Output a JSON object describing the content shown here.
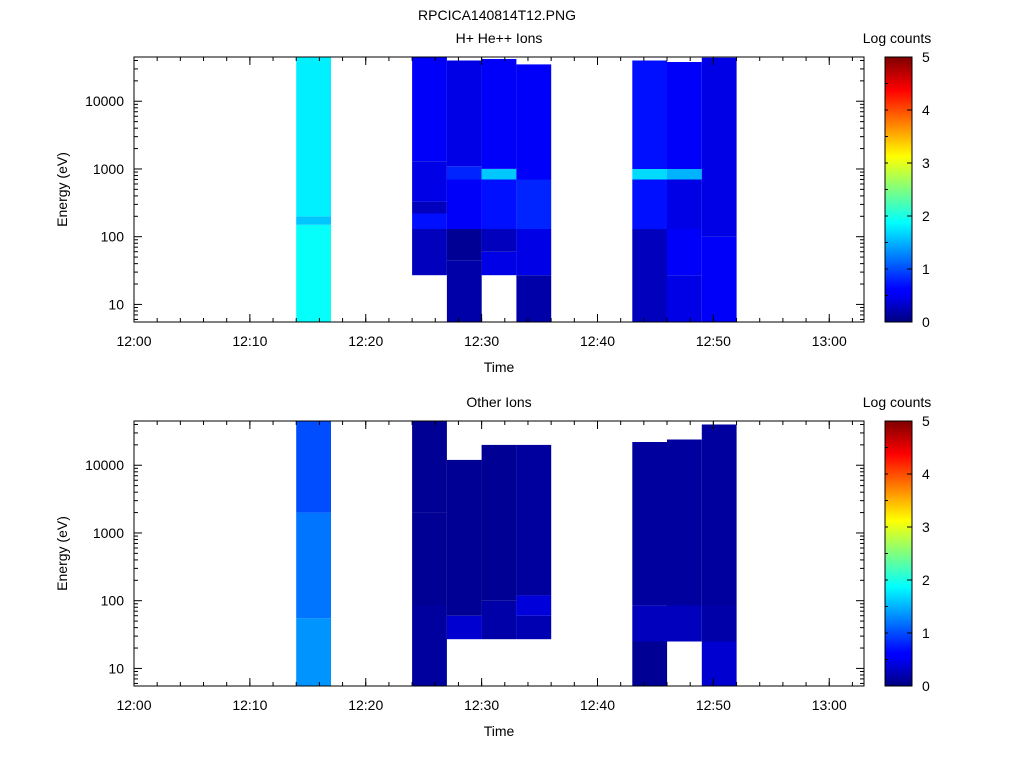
{
  "figure": {
    "title": "RPCICA140814T12.PNG"
  },
  "chart_data": [
    {
      "type": "heatmap",
      "title": "H+ He++ Ions",
      "xlabel": "Time",
      "ylabel": "Energy (eV)",
      "xlim": [
        "12:00",
        "13:03"
      ],
      "ylim": [
        5.5,
        45000
      ],
      "y_scale": "log",
      "grid": false,
      "x_ticks": [
        "12:00",
        "12:10",
        "12:20",
        "12:30",
        "12:40",
        "12:50",
        "13:00"
      ],
      "y_ticks": [
        10,
        100,
        1000,
        10000
      ],
      "y_tick_labels": [
        "10",
        "100",
        "1000",
        "10000"
      ],
      "colorbar": {
        "label": "Log counts",
        "range": [
          0,
          5
        ],
        "ticks": [
          "0",
          "1",
          "2",
          "3",
          "4",
          "5"
        ],
        "colormap": "jet"
      },
      "columns": [
        {
          "t_start": "12:14",
          "t_end": "12:17",
          "cells": [
            [
              5.5,
              150,
              1.9
            ],
            [
              150,
              200,
              1.6
            ],
            [
              200,
              45000,
              1.8
            ]
          ]
        },
        {
          "t_start": "12:24",
          "t_end": "12:27",
          "cells": [
            [
              27,
              130,
              0.3
            ],
            [
              130,
              220,
              0.7
            ],
            [
              220,
              330,
              0.3
            ],
            [
              330,
              1300,
              0.5
            ],
            [
              1300,
              45000,
              0.6
            ]
          ]
        },
        {
          "t_start": "12:27",
          "t_end": "12:30",
          "cells": [
            [
              5.5,
              45,
              0.2
            ],
            [
              45,
              130,
              0.1
            ],
            [
              130,
              700,
              0.6
            ],
            [
              700,
              1100,
              0.8
            ],
            [
              1100,
              40000,
              0.5
            ]
          ]
        },
        {
          "t_start": "12:30",
          "t_end": "12:33",
          "cells": [
            [
              27,
              60,
              0.5
            ],
            [
              60,
              130,
              0.3
            ],
            [
              130,
              700,
              0.7
            ],
            [
              700,
              1000,
              1.6
            ],
            [
              1000,
              42000,
              0.6
            ]
          ]
        },
        {
          "t_start": "12:33",
          "t_end": "12:36",
          "cells": [
            [
              5.5,
              27,
              0.2
            ],
            [
              27,
              130,
              0.5
            ],
            [
              130,
              700,
              0.8
            ],
            [
              700,
              35000,
              0.6
            ]
          ]
        },
        {
          "t_start": "12:43",
          "t_end": "12:46",
          "cells": [
            [
              5.5,
              130,
              0.3
            ],
            [
              130,
              700,
              0.7
            ],
            [
              700,
              1000,
              1.7
            ],
            [
              1000,
              40000,
              0.7
            ]
          ]
        },
        {
          "t_start": "12:46",
          "t_end": "12:49",
          "cells": [
            [
              5.5,
              27,
              0.5
            ],
            [
              27,
              130,
              0.6
            ],
            [
              130,
              700,
              0.5
            ],
            [
              700,
              1000,
              1.5
            ],
            [
              1000,
              38000,
              0.6
            ]
          ]
        },
        {
          "t_start": "12:49",
          "t_end": "12:52",
          "cells": [
            [
              5.5,
              100,
              0.6
            ],
            [
              100,
              700,
              0.5
            ],
            [
              700,
              44000,
              0.5
            ]
          ]
        }
      ]
    },
    {
      "type": "heatmap",
      "title": "Other Ions",
      "xlabel": "Time",
      "ylabel": "Energy (eV)",
      "xlim": [
        "12:00",
        "13:03"
      ],
      "ylim": [
        5.5,
        45000
      ],
      "y_scale": "log",
      "grid": false,
      "x_ticks": [
        "12:00",
        "12:10",
        "12:20",
        "12:30",
        "12:40",
        "12:50",
        "13:00"
      ],
      "y_ticks": [
        10,
        100,
        1000,
        10000
      ],
      "y_tick_labels": [
        "10",
        "100",
        "1000",
        "10000"
      ],
      "colorbar": {
        "label": "Log counts",
        "range": [
          0,
          5
        ],
        "ticks": [
          "0",
          "1",
          "2",
          "3",
          "4",
          "5"
        ],
        "colormap": "jet"
      },
      "columns": [
        {
          "t_start": "12:14",
          "t_end": "12:17",
          "cells": [
            [
              5.5,
              55,
              1.35
            ],
            [
              55,
              2000,
              1.2
            ],
            [
              2000,
              45000,
              1.0
            ]
          ]
        },
        {
          "t_start": "12:24",
          "t_end": "12:27",
          "cells": [
            [
              5.5,
              85,
              0.15
            ],
            [
              85,
              2000,
              0.1
            ],
            [
              2000,
              45000,
              0.1
            ]
          ]
        },
        {
          "t_start": "12:27",
          "t_end": "12:30",
          "cells": [
            [
              27,
              60,
              0.4
            ],
            [
              60,
              12000,
              0.1
            ]
          ]
        },
        {
          "t_start": "12:30",
          "t_end": "12:33",
          "cells": [
            [
              27,
              100,
              0.2
            ],
            [
              100,
              20000,
              0.1
            ]
          ]
        },
        {
          "t_start": "12:33",
          "t_end": "12:36",
          "cells": [
            [
              27,
              60,
              0.25
            ],
            [
              60,
              120,
              0.45
            ],
            [
              120,
              20000,
              0.15
            ]
          ]
        },
        {
          "t_start": "12:43",
          "t_end": "12:46",
          "cells": [
            [
              5.5,
              25,
              0.1
            ],
            [
              25,
              85,
              0.3
            ],
            [
              85,
              22000,
              0.15
            ]
          ]
        },
        {
          "t_start": "12:46",
          "t_end": "12:49",
          "cells": [
            [
              25,
              85,
              0.3
            ],
            [
              85,
              24000,
              0.15
            ]
          ]
        },
        {
          "t_start": "12:49",
          "t_end": "12:52",
          "cells": [
            [
              5.5,
              25,
              0.4
            ],
            [
              25,
              85,
              0.2
            ],
            [
              85,
              40000,
              0.15
            ]
          ]
        }
      ]
    }
  ]
}
